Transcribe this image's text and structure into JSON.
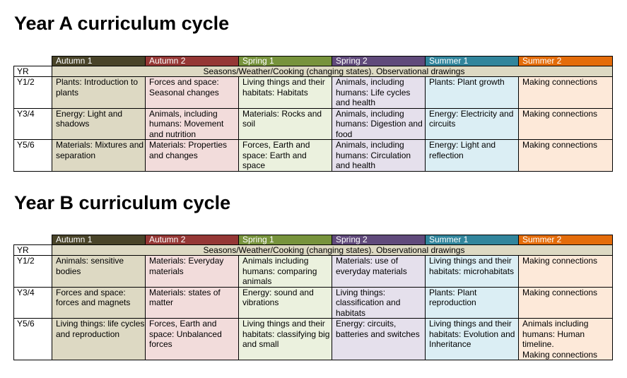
{
  "headers": [
    "Autumn 1",
    "Autumn 2",
    "Spring 1",
    "Spring 2",
    "Summer 1",
    "Summer 2"
  ],
  "colors": {
    "autumn1": "#494429",
    "autumn2": "#953735",
    "spring1": "#77933c",
    "spring2": "#604a7b",
    "summer1": "#31859c",
    "summer2": "#e46c0a"
  },
  "yearA": {
    "title": "Year A curriculum cycle",
    "yr_label": "YR",
    "yr_text": "Seasons/Weather/Cooking (changing states). Observational drawings",
    "rows": [
      {
        "label": "Y1/2",
        "cells": [
          "Plants: Introduction to plants",
          "Forces and space: Seasonal changes",
          "Living things and their habitats: Habitats",
          "Animals, including humans: Life cycles and health",
          "Plants: Plant growth",
          "Making connections"
        ]
      },
      {
        "label": "Y3/4",
        "cells": [
          "Energy: Light and shadows",
          "Animals, including humans: Movement and nutrition",
          "Materials: Rocks and soil",
          "Animals, including humans: Digestion and food",
          "Energy: Electricity and circuits",
          "Making connections"
        ]
      },
      {
        "label": "Y5/6",
        "cells": [
          "Materials: Mixtures and separation",
          "Materials: Properties and changes",
          "Forces, Earth and space: Earth and space",
          "Animals, including humans: Circulation and health",
          "Energy: Light and reflection",
          "Making connections"
        ]
      }
    ]
  },
  "yearB": {
    "title": "Year B curriculum cycle",
    "yr_label": "YR",
    "yr_text": "Seasons/Weather/Cooking (changing states). Observational drawings",
    "rows": [
      {
        "label": "Y1/2",
        "cells": [
          "Animals: sensitive bodies",
          "Materials: Everyday materials",
          "Animals including humans: comparing animals",
          "Materials: use of everyday materials",
          "Living things and their habitats: microhabitats",
          "Making connections"
        ]
      },
      {
        "label": "Y3/4",
        "cells": [
          "Forces and space: forces and magnets",
          "Materials: states of matter",
          "Energy: sound and vibrations",
          "Living things: classification and habitats",
          "Plants: Plant reproduction",
          "Making connections"
        ]
      },
      {
        "label": "Y5/6",
        "cells": [
          "Living things: life cycles and reproduction",
          "Forces, Earth and space: Unbalanced forces",
          "Living things and their habitats: classifying big and small",
          "Energy: circuits, batteries and switches",
          "Living things and their habitats: Evolution and Inheritance",
          "Animals including humans: Human timeline.\nMaking connections"
        ]
      }
    ]
  }
}
